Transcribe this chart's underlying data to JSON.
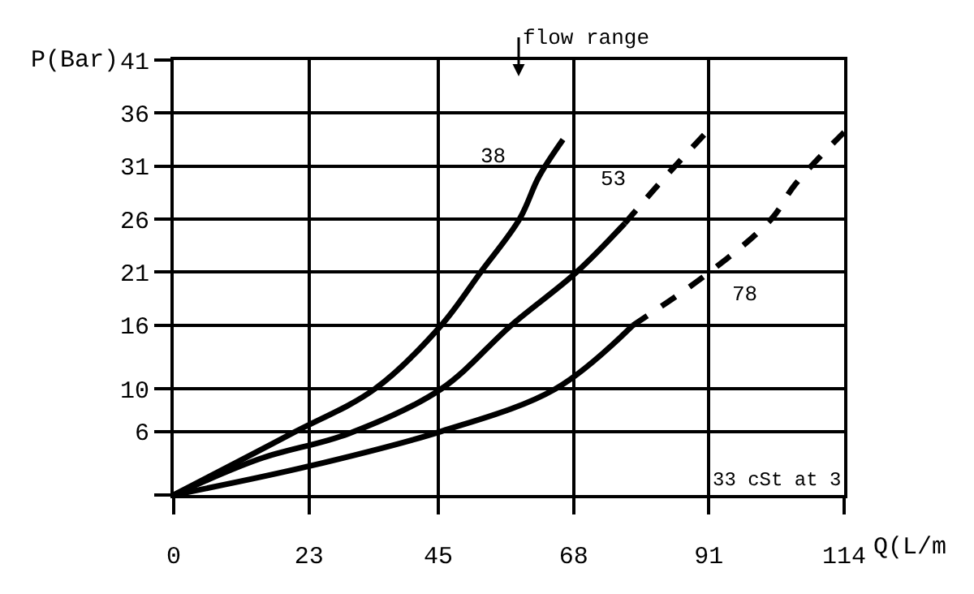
{
  "chart_data": {
    "type": "line",
    "xlabel": "Q(L/m",
    "ylabel": "P(Bar)",
    "xlim": [
      0,
      114
    ],
    "xticks": [
      0,
      23,
      45,
      68,
      91,
      114
    ],
    "ylim": [
      0,
      41
    ],
    "yticks": [
      {
        "value": 0,
        "label": null
      },
      6,
      10,
      16,
      21,
      26,
      31,
      36,
      41
    ],
    "grid": true,
    "legend": false,
    "marker": "none",
    "series": [
      {
        "name": "38",
        "color": "#000000",
        "line_style": "solid",
        "x": [
          0,
          20.1,
          34.2,
          45.5,
          52.2,
          58.8,
          62.1,
          66.2
        ],
        "values": [
          0,
          5.8,
          10.0,
          16.0,
          21.0,
          26.0,
          30.0,
          33.5
        ]
      },
      {
        "color": "#000000",
        "line_style": "solid",
        "x": [
          0,
          14.6,
          29.8,
          45.5,
          57.4,
          68.5,
          76.7
        ],
        "values": [
          0,
          3.4,
          5.8,
          10.0,
          16.0,
          21.0,
          25.6
        ]
      },
      {
        "name": "53",
        "color": "#000000",
        "line_style": "dashed",
        "x": [
          76.7,
          83.6,
          91.1
        ],
        "values": [
          25.6,
          30.0,
          34.5
        ]
      },
      {
        "color": "#000000",
        "line_style": "solid",
        "x": [
          0,
          22.9,
          45.5,
          64.9,
          78.1
        ],
        "values": [
          0,
          2.7,
          6.0,
          10.0,
          16.0
        ]
      },
      {
        "name": "78",
        "color": "#000000",
        "line_style": "dashed",
        "x": [
          78.1,
          91.1,
          101.6,
          105.7,
          114
        ],
        "values": [
          16.0,
          21.0,
          26.0,
          29.3,
          34.2
        ]
      }
    ],
    "annotations": [
      "flow range",
      "33 cSt at 3"
    ]
  }
}
